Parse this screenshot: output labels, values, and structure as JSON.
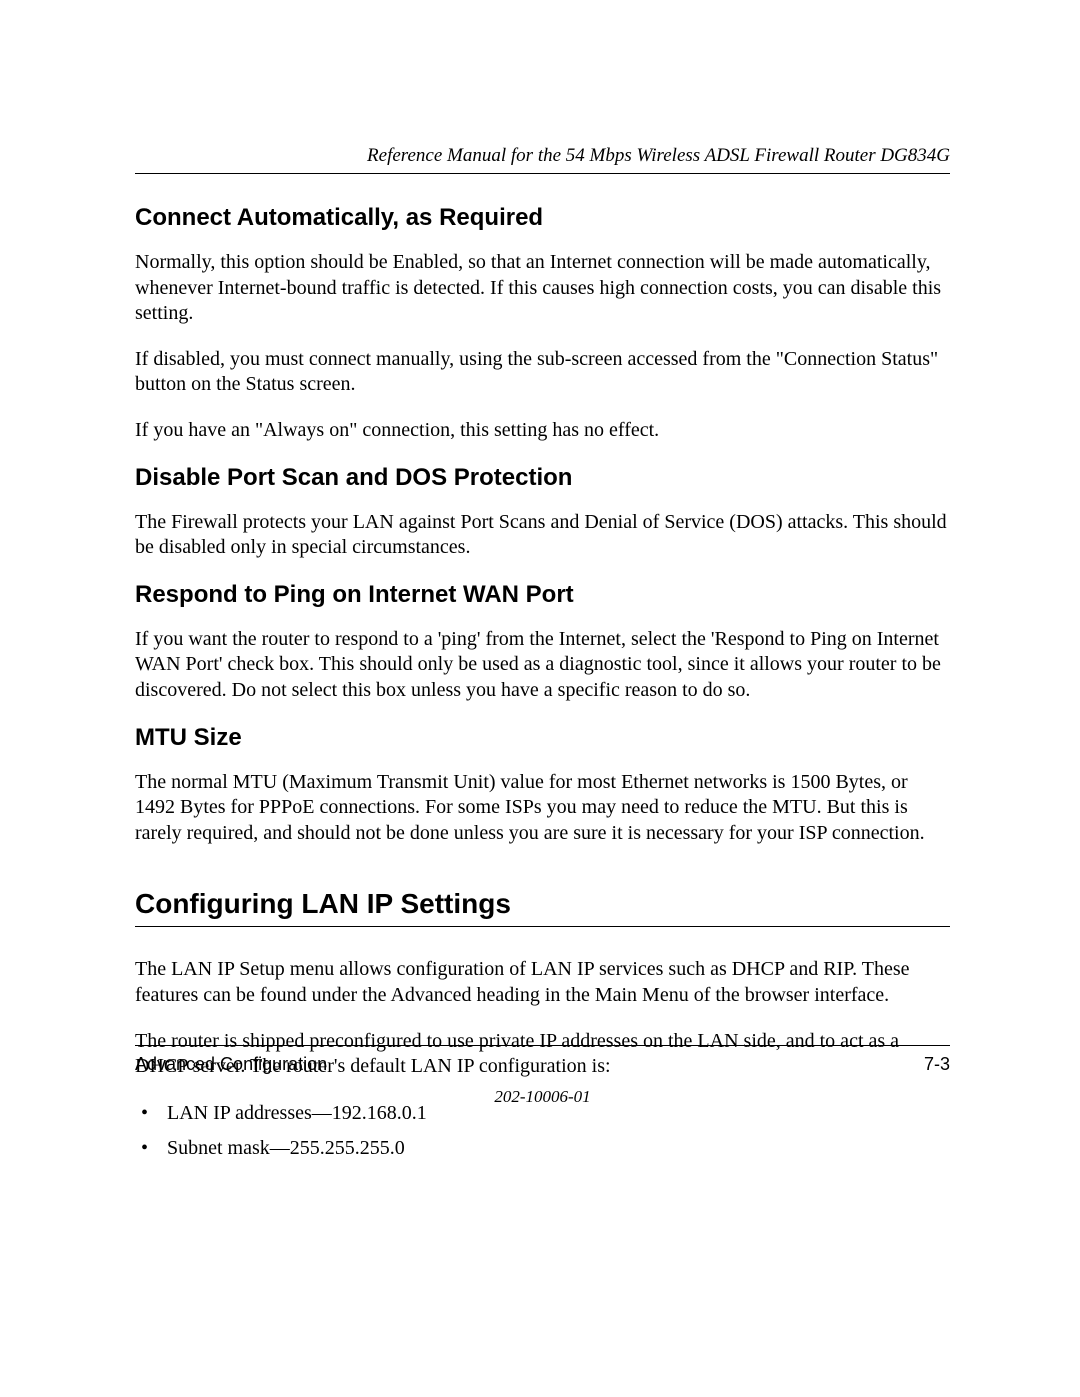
{
  "header": {
    "running_title": "Reference Manual for the 54 Mbps Wireless ADSL Firewall Router DG834G"
  },
  "sections": {
    "s1": {
      "title": "Connect Automatically, as Required",
      "p1": "Normally, this option should be Enabled, so that an Internet connection will be made automatically, whenever Internet-bound traffic is detected. If this causes high connection costs, you can disable this setting.",
      "p2": "If disabled, you must connect manually, using the sub-screen accessed from the \"Connection Status\" button on the Status screen.",
      "p3": "If you have an \"Always on\" connection, this setting has no effect."
    },
    "s2": {
      "title": "Disable Port Scan and DOS Protection",
      "p1": "The Firewall protects your LAN against Port Scans and Denial of Service (DOS) attacks. This should be disabled only in special circumstances."
    },
    "s3": {
      "title": "Respond to Ping on Internet WAN Port",
      "p1": "If you want the router to respond to a 'ping' from the Internet, select the 'Respond to Ping on Internet WAN Port' check box. This should only be used as a diagnostic tool, since it allows your router to be discovered. Do not select this box unless you have a specific reason to do so."
    },
    "s4": {
      "title": "MTU Size",
      "p1": "The normal MTU (Maximum Transmit Unit) value for most Ethernet networks is 1500 Bytes, or 1492 Bytes for PPPoE connections. For some ISPs you may need to reduce the MTU. But this is rarely required, and should not be done unless you are sure it is necessary for your ISP connection."
    },
    "lan": {
      "title": "Configuring LAN IP Settings",
      "p1": "The LAN IP Setup menu allows configuration of LAN IP services such as DHCP and RIP. These features can be found under the Advanced heading in the Main Menu of the browser interface.",
      "p2": "The router is shipped preconfigured to use private IP addresses on the LAN side, and to act as a DHCP server. The router's default LAN IP configuration is:",
      "bullets": {
        "b1": "LAN IP addresses—192.168.0.1",
        "b2": "Subnet mask—255.255.255.0"
      }
    }
  },
  "footer": {
    "section_name": "Advanced Configuration",
    "page_number": "7-3",
    "doc_number": "202-10006-01"
  }
}
